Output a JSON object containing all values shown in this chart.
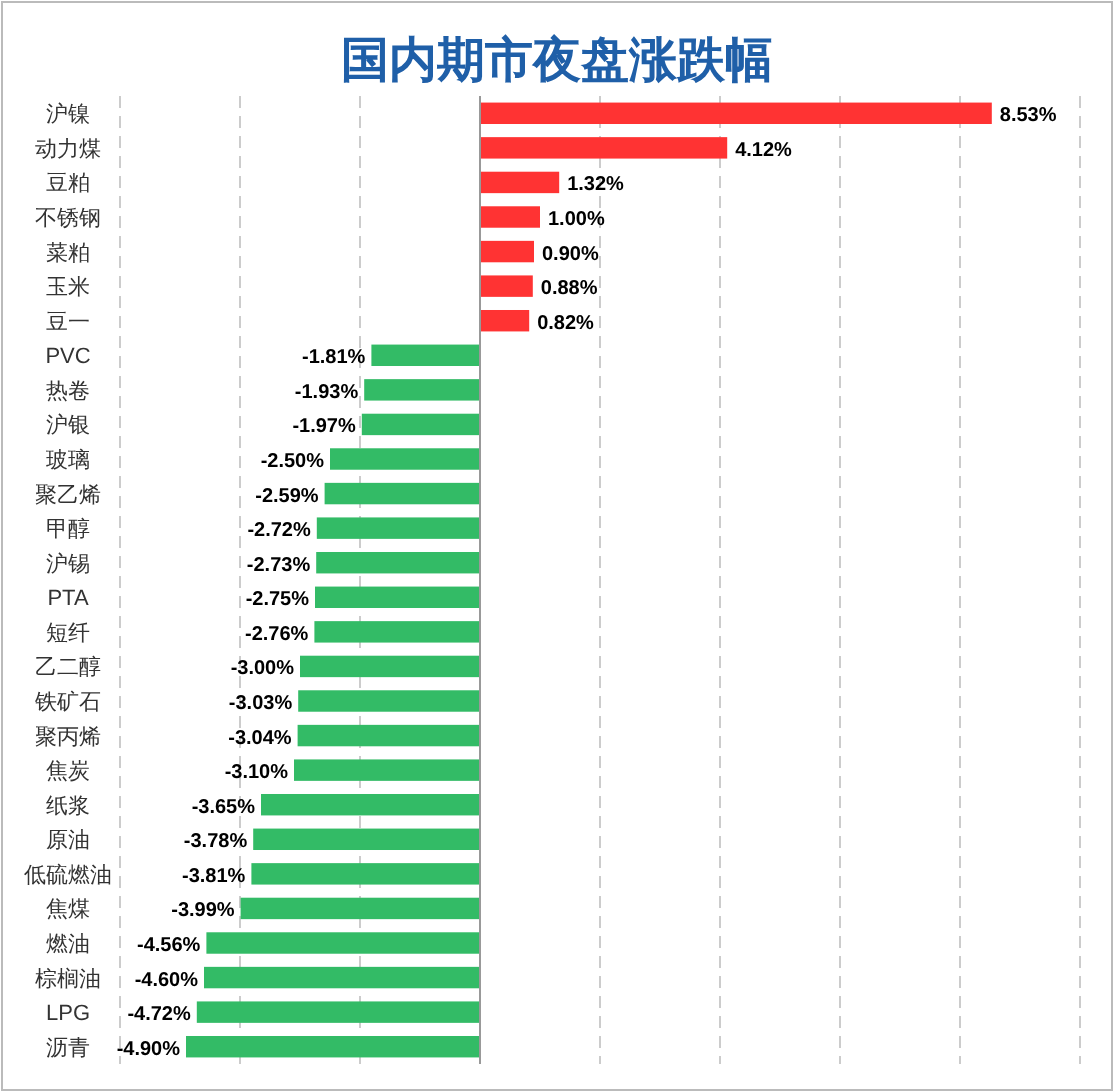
{
  "chart_data": {
    "type": "bar",
    "orientation": "horizontal",
    "title": "国内期市夜盘涨跌幅",
    "categories": [
      "沪镍",
      "动力煤",
      "豆粕",
      "不锈钢",
      "菜粕",
      "玉米",
      "豆一",
      "PVC",
      "热卷",
      "沪银",
      "玻璃",
      "聚乙烯",
      "甲醇",
      "沪锡",
      "PTA",
      "短纤",
      "乙二醇",
      "铁矿石",
      "聚丙烯",
      "焦炭",
      "纸浆",
      "原油",
      "低硫燃油",
      "焦煤",
      "燃油",
      "棕榈油",
      "LPG",
      "沥青"
    ],
    "values": [
      8.53,
      4.12,
      1.32,
      1.0,
      0.9,
      0.88,
      0.82,
      -1.81,
      -1.93,
      -1.97,
      -2.5,
      -2.59,
      -2.72,
      -2.73,
      -2.75,
      -2.76,
      -3.0,
      -3.03,
      -3.04,
      -3.1,
      -3.65,
      -3.78,
      -3.81,
      -3.99,
      -4.56,
      -4.6,
      -4.72,
      -4.9
    ],
    "value_labels": [
      "8.53%",
      "4.12%",
      "1.32%",
      "1.00%",
      "0.90%",
      "0.88%",
      "0.82%",
      "-1.81%",
      "-1.93%",
      "-1.97%",
      "-2.50%",
      "-2.59%",
      "-2.72%",
      "-2.73%",
      "-2.75%",
      "-2.76%",
      "-3.00%",
      "-3.03%",
      "-3.04%",
      "-3.10%",
      "-3.65%",
      "-3.78%",
      "-3.81%",
      "-3.99%",
      "-4.56%",
      "-4.60%",
      "-4.72%",
      "-4.90%"
    ],
    "colors": [
      "#ff3333",
      "#ff3333",
      "#ff3333",
      "#ff3333",
      "#ff3333",
      "#ff3333",
      "#ff3333",
      "#33bb66",
      "#33bb66",
      "#33bb66",
      "#33bb66",
      "#33bb66",
      "#33bb66",
      "#33bb66",
      "#33bb66",
      "#33bb66",
      "#33bb66",
      "#33bb66",
      "#33bb66",
      "#33bb66",
      "#33bb66",
      "#33bb66",
      "#33bb66",
      "#33bb66",
      "#33bb66",
      "#33bb66",
      "#33bb66",
      "#33bb66"
    ],
    "xlim": [
      -6,
      10.5
    ],
    "xticks": [
      {
        "value": -6,
        "label": null
      },
      {
        "value": -4,
        "label": null
      },
      {
        "value": -2,
        "label": null
      },
      {
        "value": 0,
        "label": null
      },
      {
        "value": 2,
        "label": null
      },
      {
        "value": 4,
        "label": null
      },
      {
        "value": 6,
        "label": null
      },
      {
        "value": 8,
        "label": null
      },
      {
        "value": 10,
        "label": null
      }
    ],
    "grid": "x"
  }
}
